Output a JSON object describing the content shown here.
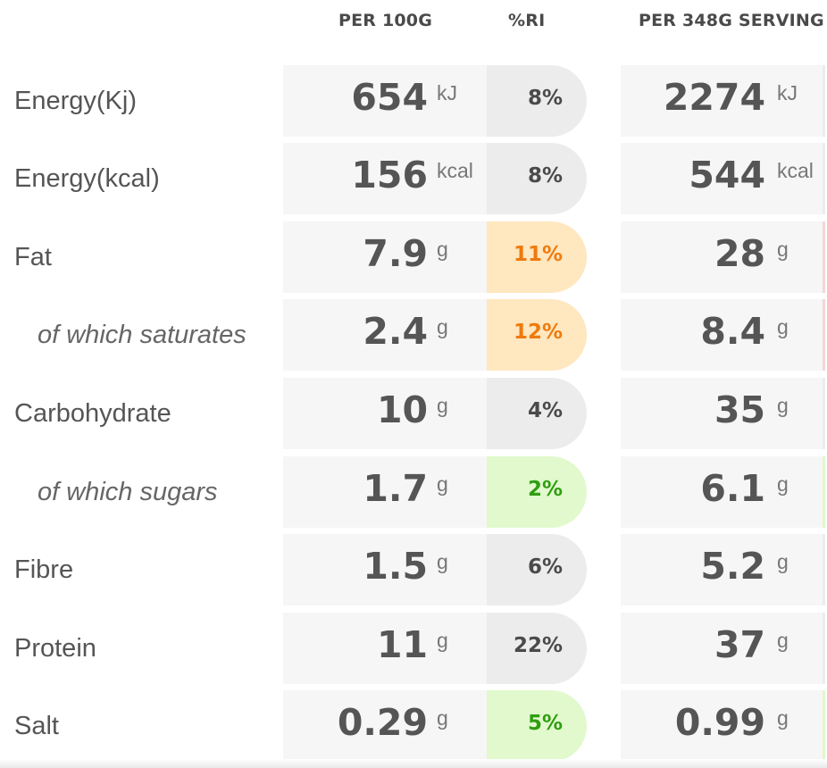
{
  "header": {
    "per_100g": "PER 100G",
    "ri": "%RI",
    "per_serving": "PER 348G SERVING"
  },
  "rows": [
    {
      "label": "Energy(Kj)",
      "per100_value": "654",
      "per100_unit": "kJ",
      "ri": "8%",
      "ri_level": "neutral",
      "serving_value": "2274",
      "serving_unit": "kJ"
    },
    {
      "label": "Energy(kcal)",
      "per100_value": "156",
      "per100_unit": "kcal",
      "ri": "8%",
      "ri_level": "neutral",
      "serving_value": "544",
      "serving_unit": "kcal"
    },
    {
      "label": "Fat",
      "per100_value": "7.9",
      "per100_unit": "g",
      "ri": "11%",
      "ri_level": "amber",
      "serving_value": "28",
      "serving_unit": "g"
    },
    {
      "label": "of which saturates",
      "per100_value": "2.4",
      "per100_unit": "g",
      "ri": "12%",
      "ri_level": "amber",
      "serving_value": "8.4",
      "serving_unit": "g"
    },
    {
      "label": "Carbohydrate",
      "per100_value": "10",
      "per100_unit": "g",
      "ri": "4%",
      "ri_level": "neutral",
      "serving_value": "35",
      "serving_unit": "g"
    },
    {
      "label": "of which sugars",
      "per100_value": "1.7",
      "per100_unit": "g",
      "ri": "2%",
      "ri_level": "green",
      "serving_value": "6.1",
      "serving_unit": "g"
    },
    {
      "label": "Fibre",
      "per100_value": "1.5",
      "per100_unit": "g",
      "ri": "6%",
      "ri_level": "neutral",
      "serving_value": "5.2",
      "serving_unit": "g"
    },
    {
      "label": "Protein",
      "per100_value": "11",
      "per100_unit": "g",
      "ri": "22%",
      "ri_level": "neutral",
      "serving_value": "37",
      "serving_unit": "g"
    },
    {
      "label": "Salt",
      "per100_value": "0.29",
      "per100_unit": "g",
      "ri": "5%",
      "ri_level": "green",
      "serving_value": "0.99",
      "serving_unit": "g"
    }
  ],
  "colors": {
    "text": "#555555",
    "cell_background": "#f6f6f6",
    "ri_neutral": "#ececec",
    "ri_amber": "#ffe7bf",
    "ri_amber_text": "#f07a0c",
    "ri_green": "#e1f9cd",
    "ri_green_text": "#2f9e11"
  }
}
